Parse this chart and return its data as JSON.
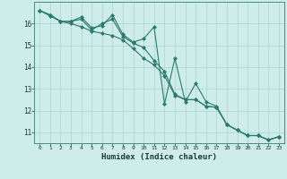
{
  "xlabel": "Humidex (Indice chaleur)",
  "ylabel": "",
  "xlim": [
    -0.5,
    23.5
  ],
  "ylim": [
    10.5,
    17.0
  ],
  "background_color": "#ceecea",
  "grid_color": "#aad4d0",
  "line_color": "#2a7a6e",
  "x": [
    0,
    1,
    2,
    3,
    4,
    5,
    6,
    7,
    8,
    9,
    10,
    11,
    12,
    13,
    14,
    15,
    16,
    17,
    18,
    19,
    20,
    21,
    22,
    23
  ],
  "line1": [
    16.6,
    16.4,
    16.1,
    16.1,
    16.3,
    15.8,
    15.9,
    16.4,
    15.5,
    15.15,
    15.3,
    15.85,
    12.3,
    14.4,
    12.4,
    13.25,
    12.4,
    12.2,
    11.35,
    11.1,
    10.85,
    10.85,
    10.65,
    10.8
  ],
  "line2": [
    16.6,
    16.4,
    16.1,
    16.1,
    16.2,
    15.7,
    16.0,
    16.2,
    15.4,
    15.1,
    14.9,
    14.3,
    13.8,
    12.75,
    12.5,
    12.5,
    12.2,
    12.15,
    11.35,
    11.1,
    10.85,
    10.85,
    10.65,
    10.8
  ],
  "line3": [
    16.6,
    16.35,
    16.1,
    16.0,
    15.85,
    15.65,
    15.55,
    15.45,
    15.25,
    14.85,
    14.4,
    14.1,
    13.6,
    12.7,
    12.5,
    12.5,
    12.2,
    12.15,
    11.35,
    11.1,
    10.85,
    10.85,
    10.65,
    10.8
  ],
  "yticks": [
    11,
    12,
    13,
    14,
    15,
    16
  ],
  "xticks": [
    0,
    1,
    2,
    3,
    4,
    5,
    6,
    7,
    8,
    9,
    10,
    11,
    12,
    13,
    14,
    15,
    16,
    17,
    18,
    19,
    20,
    21,
    22,
    23
  ],
  "marker": "D",
  "markersize": 2.0,
  "linewidth": 0.8
}
